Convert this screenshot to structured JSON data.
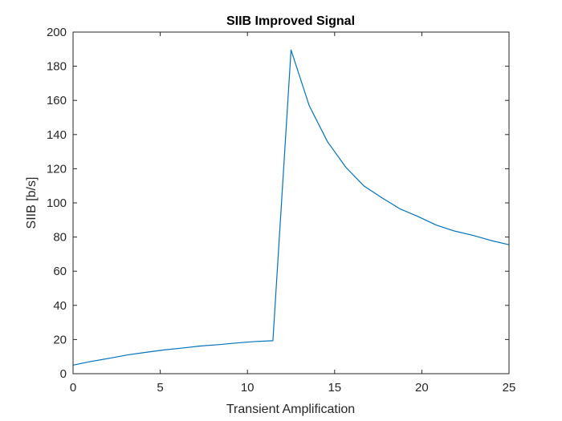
{
  "chart_data": {
    "type": "line",
    "title": "SIIB Improved Signal",
    "xlabel": "Transient Amplification",
    "ylabel": "SIIB [b/s]",
    "xlim": [
      0,
      25
    ],
    "ylim": [
      0,
      200
    ],
    "xticks": [
      0,
      5,
      10,
      15,
      20,
      25
    ],
    "yticks": [
      0,
      20,
      40,
      60,
      80,
      100,
      120,
      140,
      160,
      180,
      200
    ],
    "grid": false,
    "series": [
      {
        "color": "#0072BD",
        "x": [
          0,
          1.04,
          2.08,
          3.13,
          4.17,
          5.21,
          6.25,
          7.29,
          8.33,
          9.38,
          10.42,
          11.46,
          12.5,
          13.54,
          14.58,
          15.63,
          16.67,
          17.71,
          18.75,
          19.79,
          20.83,
          21.88,
          22.92,
          23.96,
          25
        ],
        "y": [
          5,
          7.2,
          9,
          11,
          12.5,
          13.9,
          15,
          16.2,
          17,
          18,
          18.8,
          19.3,
          189.5,
          157,
          136,
          121,
          110,
          103,
          96.5,
          92,
          87,
          83.5,
          81,
          78,
          75.5
        ]
      }
    ]
  }
}
